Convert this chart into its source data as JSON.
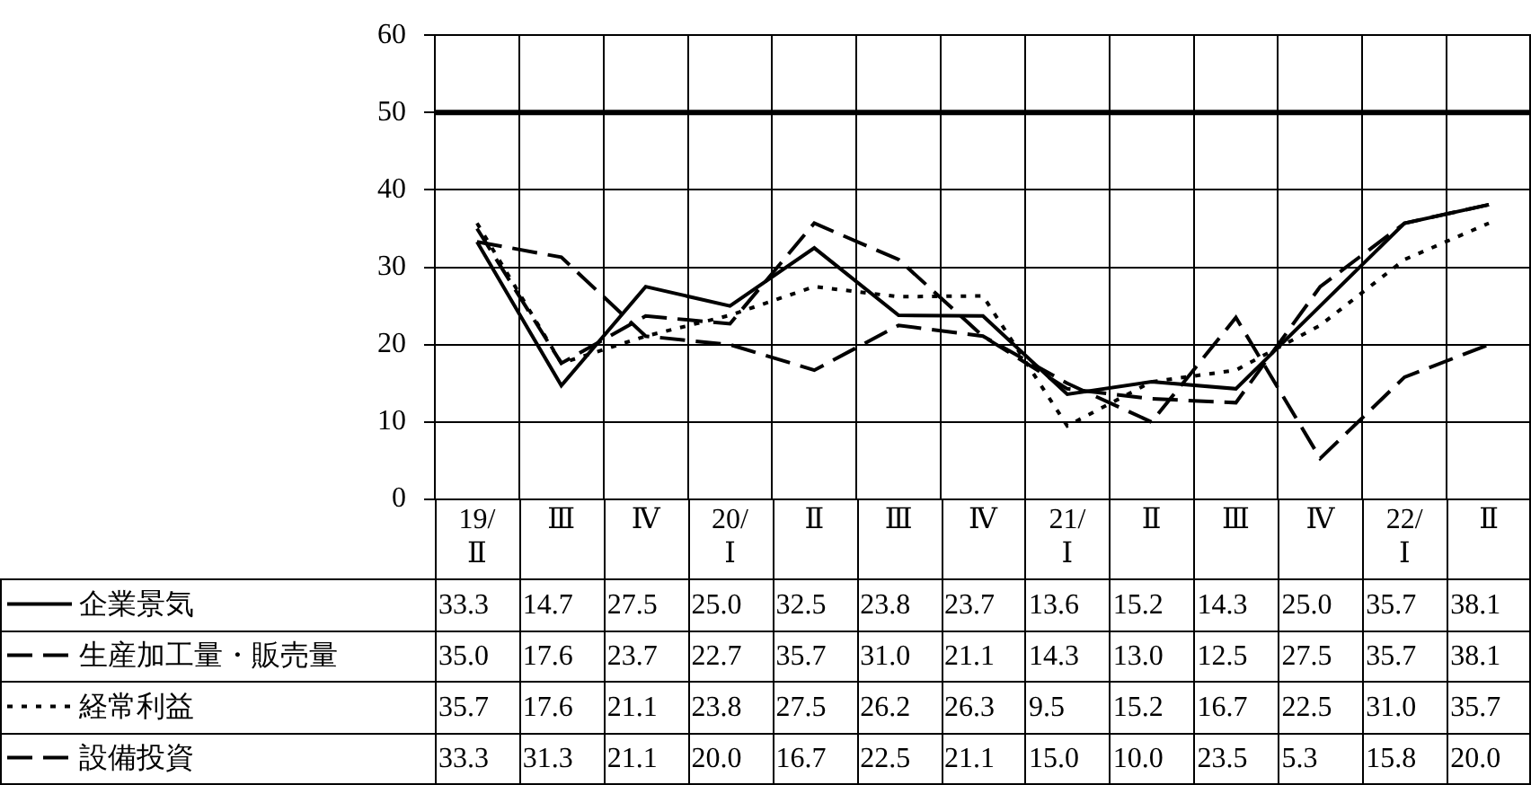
{
  "chart_data": {
    "type": "line",
    "categories": [
      "19/Ⅱ",
      "Ⅲ",
      "Ⅳ",
      "20/Ⅰ",
      "Ⅱ",
      "Ⅲ",
      "Ⅳ",
      "21/Ⅰ",
      "Ⅱ",
      "Ⅲ",
      "Ⅳ",
      "22/Ⅰ",
      "Ⅱ"
    ],
    "series": [
      {
        "name": "企業景気",
        "color": "#000000",
        "line_style": "solid",
        "values": [
          33.3,
          14.7,
          27.5,
          25.0,
          32.5,
          23.8,
          23.7,
          13.6,
          15.2,
          14.3,
          25.0,
          35.7,
          38.1
        ],
        "value_labels": [
          "33.3",
          "14.7",
          "27.5",
          "25.0",
          "32.5",
          "23.8",
          "23.7",
          "13.6",
          "15.2",
          "14.3",
          "25.0",
          "35.7",
          "38.1"
        ]
      },
      {
        "name": "生産加工量・販売量",
        "color": "#000000",
        "line_style": "dashed",
        "values": [
          35.0,
          17.6,
          23.7,
          22.7,
          35.7,
          31.0,
          21.1,
          14.3,
          13.0,
          12.5,
          27.5,
          35.7,
          38.1
        ],
        "value_labels": [
          "35.0",
          "17.6",
          "23.7",
          "22.7",
          "35.7",
          "31.0",
          "21.1",
          "14.3",
          "13.0",
          "12.5",
          "27.5",
          "35.7",
          "38.1"
        ]
      },
      {
        "name": "経常利益",
        "color": "#000000",
        "line_style": "dotted",
        "values": [
          35.7,
          17.6,
          21.1,
          23.8,
          27.5,
          26.2,
          26.3,
          9.5,
          15.2,
          16.7,
          22.5,
          31.0,
          35.7
        ],
        "value_labels": [
          "35.7",
          "17.6",
          "21.1",
          "23.8",
          "27.5",
          "26.2",
          "26.3",
          "9.5",
          "15.2",
          "16.7",
          "22.5",
          "31.0",
          "35.7"
        ]
      },
      {
        "name": "設備投資",
        "color": "#000000",
        "line_style": "dashed",
        "values": [
          33.3,
          31.3,
          21.1,
          20.0,
          16.7,
          22.5,
          21.1,
          15.0,
          10.0,
          23.5,
          5.3,
          15.8,
          20.0
        ],
        "value_labels": [
          "33.3",
          "31.3",
          "21.1",
          "20.0",
          "16.7",
          "22.5",
          "21.1",
          "15.0",
          "10.0",
          "23.5",
          "5.3",
          "15.8",
          "20.0"
        ]
      }
    ],
    "ylim": [
      0,
      60
    ],
    "yticks": [
      0,
      10,
      20,
      30,
      40,
      50,
      60
    ],
    "ref_lines": [
      {
        "axis": "y",
        "value": 50,
        "color": "#000000"
      }
    ],
    "grid": true,
    "legend": "bottom",
    "marker": "none"
  }
}
